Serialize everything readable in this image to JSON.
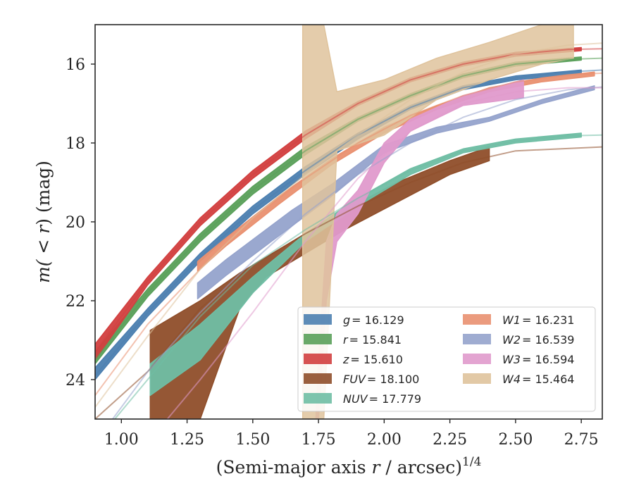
{
  "chart_data": {
    "type": "line",
    "title": "",
    "xlabel_main": "(Semi-major axis ",
    "xlabel_var": "r",
    "xlabel_rest": " / arcsec)",
    "xlabel_sup": "1/4",
    "ylabel_main": "m(",
    "ylabel_mid": " < r",
    "ylabel_rest": ") (mag)",
    "xlim": [
      0.9,
      2.83
    ],
    "ylim": [
      25.0,
      15.0
    ],
    "y_inverted": true,
    "grid": false,
    "legend_position": "lower-right",
    "xticks": [
      1.0,
      1.25,
      1.5,
      1.75,
      2.0,
      2.25,
      2.5,
      2.75
    ],
    "xtick_labels": [
      "1.00",
      "1.25",
      "1.50",
      "1.75",
      "2.00",
      "2.25",
      "2.50",
      "2.75"
    ],
    "yticks": [
      16,
      18,
      20,
      22,
      24
    ],
    "ytick_labels": [
      "16",
      "18",
      "20",
      "22",
      "24"
    ],
    "series": [
      {
        "name": "g = 16.129",
        "label_var": "g",
        "label_val": "= 16.129",
        "color": "#4c7fb0",
        "model": [
          [
            0.9,
            23.9
          ],
          [
            1.1,
            22.3
          ],
          [
            1.3,
            20.9
          ],
          [
            1.5,
            19.7
          ],
          [
            1.7,
            18.7
          ],
          [
            1.9,
            17.8
          ],
          [
            2.1,
            17.1
          ],
          [
            2.3,
            16.6
          ],
          [
            2.5,
            16.35
          ],
          [
            2.7,
            16.2
          ],
          [
            2.83,
            16.15
          ]
        ],
        "band": [
          [
            0.9,
            23.7,
            24.0
          ],
          [
            1.1,
            22.2,
            22.4
          ],
          [
            1.3,
            20.8,
            21.0
          ],
          [
            1.5,
            19.6,
            19.8
          ],
          [
            1.7,
            18.6,
            18.8
          ],
          [
            1.9,
            17.75,
            17.9
          ],
          [
            2.1,
            17.05,
            17.15
          ],
          [
            2.3,
            16.55,
            16.65
          ],
          [
            2.5,
            16.3,
            16.4
          ],
          [
            2.75,
            16.15,
            16.25
          ]
        ]
      },
      {
        "name": "r = 15.841",
        "label_var": "r",
        "label_val": "= 15.841",
        "color": "#5aa05a",
        "model": [
          [
            0.9,
            23.5
          ],
          [
            1.1,
            21.8
          ],
          [
            1.3,
            20.4
          ],
          [
            1.5,
            19.2
          ],
          [
            1.7,
            18.2
          ],
          [
            1.9,
            17.4
          ],
          [
            2.1,
            16.8
          ],
          [
            2.3,
            16.3
          ],
          [
            2.5,
            16.0
          ],
          [
            2.7,
            15.88
          ],
          [
            2.83,
            15.85
          ]
        ],
        "band": [
          [
            0.9,
            23.3,
            23.6
          ],
          [
            1.1,
            21.7,
            21.9
          ],
          [
            1.3,
            20.3,
            20.5
          ],
          [
            1.5,
            19.1,
            19.3
          ],
          [
            1.7,
            18.1,
            18.3
          ],
          [
            1.9,
            17.35,
            17.45
          ],
          [
            2.1,
            16.75,
            16.85
          ],
          [
            2.3,
            16.25,
            16.35
          ],
          [
            2.5,
            15.95,
            16.05
          ],
          [
            2.75,
            15.82,
            15.9
          ]
        ]
      },
      {
        "name": "z = 15.610",
        "label_var": "z",
        "label_val": "= 15.610",
        "color": "#d23f3f",
        "model": [
          [
            0.9,
            23.3
          ],
          [
            1.1,
            21.5
          ],
          [
            1.3,
            20.0
          ],
          [
            1.5,
            18.8
          ],
          [
            1.7,
            17.8
          ],
          [
            1.9,
            17.0
          ],
          [
            2.1,
            16.4
          ],
          [
            2.3,
            16.0
          ],
          [
            2.5,
            15.75
          ],
          [
            2.7,
            15.63
          ],
          [
            2.83,
            15.61
          ]
        ],
        "band": [
          [
            0.9,
            23.1,
            23.5
          ],
          [
            1.1,
            21.4,
            21.6
          ],
          [
            1.3,
            19.9,
            20.1
          ],
          [
            1.5,
            18.7,
            18.9
          ],
          [
            1.7,
            17.7,
            17.9
          ],
          [
            1.9,
            16.95,
            17.05
          ],
          [
            2.1,
            16.35,
            16.45
          ],
          [
            2.3,
            15.95,
            16.05
          ],
          [
            2.5,
            15.7,
            15.8
          ],
          [
            2.75,
            15.58,
            15.66
          ]
        ]
      },
      {
        "name": "FUV = 18.100",
        "label_var": "FUV",
        "label_val": "= 18.100",
        "color": "#8f4e2a",
        "model": [
          [
            0.9,
            25.0
          ],
          [
            1.1,
            23.8
          ],
          [
            1.3,
            22.2
          ],
          [
            1.5,
            21.1
          ],
          [
            1.7,
            20.3
          ],
          [
            1.9,
            19.6
          ],
          [
            2.1,
            19.0
          ],
          [
            2.3,
            18.5
          ],
          [
            2.5,
            18.2
          ],
          [
            2.83,
            18.1
          ]
        ],
        "band": [
          [
            1.11,
            22.75,
            25.0
          ],
          [
            1.3,
            22.0,
            25.0
          ],
          [
            1.45,
            21.3,
            22.2
          ],
          [
            1.55,
            20.9,
            21.4
          ],
          [
            1.7,
            20.3,
            20.8
          ],
          [
            1.85,
            19.7,
            20.2
          ],
          [
            2.05,
            19.0,
            19.5
          ],
          [
            2.25,
            18.45,
            18.8
          ],
          [
            2.4,
            18.1,
            18.45
          ]
        ]
      },
      {
        "name": "NUV = 17.779",
        "label_var": "NUV",
        "label_val": "= 17.779",
        "color": "#6fbea4",
        "model": [
          [
            0.9,
            25.6
          ],
          [
            1.1,
            24.0
          ],
          [
            1.3,
            22.4
          ],
          [
            1.5,
            21.1
          ],
          [
            1.7,
            20.2
          ],
          [
            1.9,
            19.4
          ],
          [
            2.1,
            18.7
          ],
          [
            2.3,
            18.2
          ],
          [
            2.5,
            17.95
          ],
          [
            2.7,
            17.82
          ],
          [
            2.83,
            17.8
          ]
        ],
        "band": [
          [
            1.11,
            23.6,
            24.4
          ],
          [
            1.3,
            22.6,
            23.5
          ],
          [
            1.5,
            21.4,
            21.8
          ],
          [
            1.7,
            20.3,
            20.5
          ],
          [
            1.9,
            19.4,
            19.6
          ],
          [
            2.1,
            18.65,
            18.8
          ],
          [
            2.3,
            18.15,
            18.25
          ],
          [
            2.5,
            17.9,
            18.0
          ],
          [
            2.75,
            17.75,
            17.85
          ]
        ]
      },
      {
        "name": "W1 = 16.231",
        "label_var": "W1",
        "label_val": "= 16.231",
        "color": "#e99070",
        "model": [
          [
            0.9,
            24.4
          ],
          [
            1.1,
            22.6
          ],
          [
            1.3,
            21.2
          ],
          [
            1.5,
            19.9
          ],
          [
            1.7,
            18.9
          ],
          [
            1.9,
            18.0
          ],
          [
            2.1,
            17.3
          ],
          [
            2.3,
            16.8
          ],
          [
            2.5,
            16.45
          ],
          [
            2.7,
            16.27
          ],
          [
            2.83,
            16.23
          ]
        ],
        "band": [
          [
            1.29,
            21.0,
            21.25
          ],
          [
            1.4,
            20.4,
            20.6
          ],
          [
            1.6,
            19.35,
            19.55
          ],
          [
            1.8,
            18.4,
            18.55
          ],
          [
            2.0,
            17.6,
            17.75
          ],
          [
            2.2,
            17.05,
            17.15
          ],
          [
            2.4,
            16.6,
            16.7
          ],
          [
            2.6,
            16.35,
            16.45
          ],
          [
            2.8,
            16.2,
            16.3
          ]
        ]
      },
      {
        "name": "W2 = 16.539",
        "label_var": "W2",
        "label_val": "= 16.539",
        "color": "#95a3cc",
        "model": [
          [
            0.9,
            25.6
          ],
          [
            1.1,
            23.8
          ],
          [
            1.3,
            22.3
          ],
          [
            1.5,
            21.0
          ],
          [
            1.7,
            19.8
          ],
          [
            1.9,
            18.8
          ],
          [
            2.1,
            18.0
          ],
          [
            2.3,
            17.35
          ],
          [
            2.5,
            16.9
          ],
          [
            2.7,
            16.65
          ],
          [
            2.83,
            16.58
          ]
        ],
        "band": [
          [
            1.29,
            21.55,
            21.95
          ],
          [
            1.4,
            20.95,
            21.35
          ],
          [
            1.5,
            20.45,
            20.85
          ],
          [
            1.65,
            19.7,
            20.1
          ],
          [
            1.8,
            19.05,
            19.35
          ],
          [
            2.0,
            18.05,
            18.25
          ],
          [
            2.2,
            17.6,
            17.75
          ],
          [
            2.4,
            17.35,
            17.45
          ],
          [
            2.6,
            16.9,
            17.0
          ],
          [
            2.8,
            16.55,
            16.65
          ]
        ]
      },
      {
        "name": "W3 = 16.594",
        "label_var": "W3",
        "label_val": "= 16.594",
        "color": "#e09acc",
        "model": [
          [
            1.1,
            25.6
          ],
          [
            1.3,
            24.0
          ],
          [
            1.5,
            22.3
          ],
          [
            1.7,
            20.5
          ],
          [
            1.9,
            18.9
          ],
          [
            2.1,
            17.7
          ],
          [
            2.3,
            17.0
          ],
          [
            2.5,
            16.7
          ],
          [
            2.7,
            16.6
          ],
          [
            2.83,
            16.6
          ]
        ],
        "band": [
          [
            1.74,
            25.0,
            25.0
          ],
          [
            1.75,
            23.5,
            25.0
          ],
          [
            1.78,
            20.5,
            22.0
          ],
          [
            1.82,
            19.8,
            20.5
          ],
          [
            1.9,
            19.2,
            19.8
          ],
          [
            2.0,
            18.0,
            18.5
          ],
          [
            2.1,
            17.4,
            17.7
          ],
          [
            2.3,
            16.8,
            17.05
          ],
          [
            2.53,
            16.4,
            16.85
          ]
        ]
      },
      {
        "name": "W4 = 15.464",
        "label_var": "W4",
        "label_val": "= 15.464",
        "color": "#dfc39c",
        "model": [
          [
            0.9,
            24.7
          ],
          [
            1.1,
            22.9
          ],
          [
            1.3,
            21.2
          ],
          [
            1.5,
            19.9
          ],
          [
            1.7,
            18.8
          ],
          [
            1.9,
            17.8
          ],
          [
            2.1,
            16.9
          ],
          [
            2.3,
            16.2
          ],
          [
            2.5,
            15.75
          ],
          [
            2.7,
            15.52
          ],
          [
            2.83,
            15.47
          ]
        ],
        "band": [
          [
            1.69,
            15.0,
            25.0
          ],
          [
            1.77,
            15.0,
            25.0
          ],
          [
            1.82,
            16.7,
            18.2
          ],
          [
            2.0,
            16.4,
            17.8
          ],
          [
            2.2,
            15.85,
            16.9
          ],
          [
            2.4,
            15.45,
            16.4
          ],
          [
            2.6,
            15.0,
            16.0
          ],
          [
            2.72,
            15.0,
            15.85
          ]
        ]
      }
    ]
  }
}
